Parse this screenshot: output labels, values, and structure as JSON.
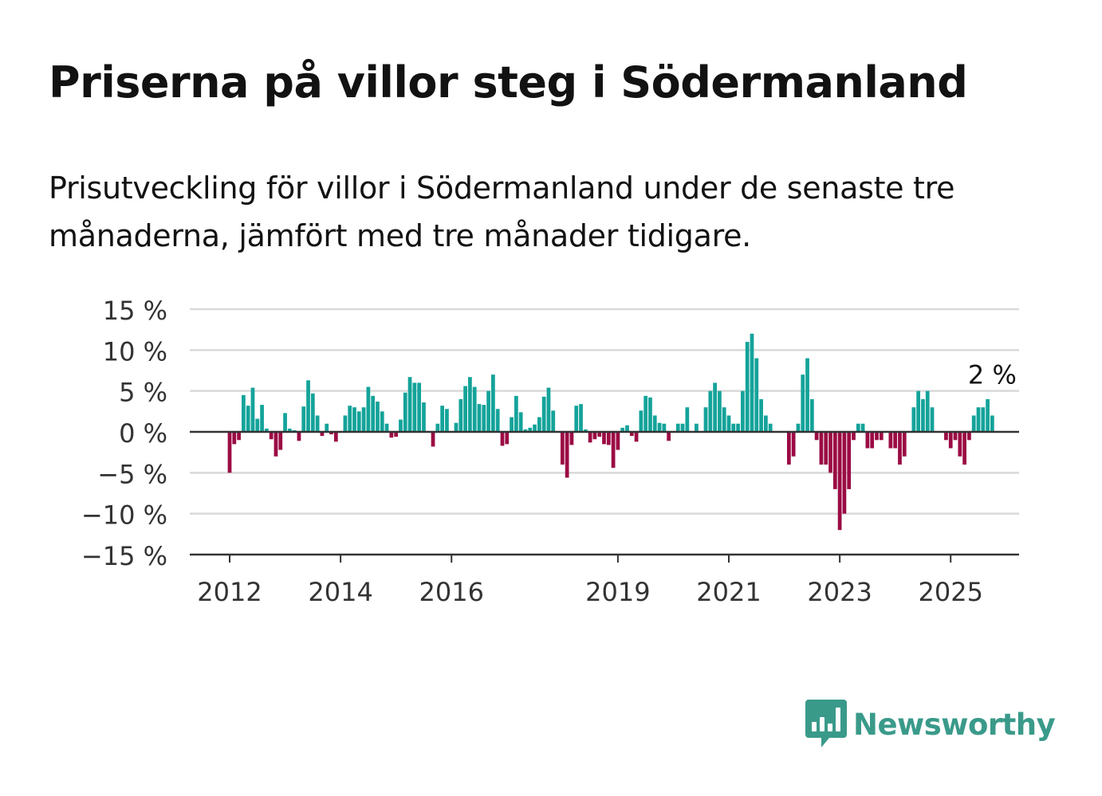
{
  "title": "Priserna på villor steg i Södermanland",
  "subtitle": "Prisutveckling för villor i Södermanland under de senaste tre månaderna, jämfört med tre månader tidigare.",
  "brand": {
    "name": "Newsworthy",
    "logo_icon": "newsworthy-chart-bubble-icon"
  },
  "colors": {
    "positive": "#14a39a",
    "negative": "#9b0b44",
    "grid": "#d9d9d9",
    "axis": "#333333",
    "brand": "#3a9a8a"
  },
  "chart_data": {
    "type": "bar",
    "x_start": "2012-01",
    "x_end": "2025-07",
    "frequency": "monthly",
    "xticks": [
      "2012",
      "2014",
      "2016",
      "2019",
      "2021",
      "2023",
      "2025"
    ],
    "yticks": [
      "15 %",
      "10 %",
      "5 %",
      "0 %",
      "−5 %",
      "−10 %",
      "−15 %"
    ],
    "ylim": [
      -15,
      15
    ],
    "grid": true,
    "annotation": {
      "label": "2 %",
      "target": "last"
    },
    "values": [
      -5,
      -1.5,
      -1,
      4.5,
      3.2,
      5.4,
      1.6,
      3.3,
      0.4,
      -0.9,
      -3,
      -2.2,
      2.3,
      0.4,
      0.2,
      -1.1,
      3.1,
      6.3,
      4.7,
      2,
      -0.5,
      1,
      -0.3,
      -1.2,
      0,
      2,
      3.2,
      3,
      2.5,
      3,
      5.5,
      4.4,
      3.7,
      2.5,
      1,
      -0.7,
      -0.6,
      1.5,
      4.8,
      6.7,
      6,
      6,
      3.6,
      0,
      -1.8,
      1,
      3.2,
      2.8,
      0,
      1.1,
      4,
      5.6,
      6.7,
      5.5,
      3.4,
      3.3,
      5,
      7,
      2.8,
      -1.7,
      -1.5,
      1.8,
      4.4,
      2.4,
      0.3,
      0.5,
      0.9,
      1.8,
      4.3,
      5.4,
      2.6,
      0,
      -4,
      -5.6,
      -1.6,
      3.2,
      3.4,
      0.3,
      -1.3,
      -0.9,
      -0.6,
      -1.5,
      -1.6,
      -4.4,
      -2.2,
      0.5,
      0.8,
      -0.5,
      -1.2,
      2.6,
      4.4,
      4.2,
      2,
      1.1,
      1,
      -1.1,
      0,
      1,
      1,
      3,
      0,
      1,
      0,
      3,
      5,
      6,
      5,
      3,
      2,
      1,
      1,
      5,
      11,
      12,
      9,
      4,
      2,
      1,
      0,
      0,
      0,
      -4,
      -3,
      1,
      7,
      9,
      4,
      -1,
      -4,
      -4,
      -5,
      -7,
      -12,
      -10,
      -7,
      -1,
      1,
      1,
      -2,
      -2,
      -1,
      -1,
      0,
      -2,
      -2,
      -4,
      -3,
      0,
      3,
      5,
      4,
      5,
      3,
      0,
      0,
      -1,
      -2,
      -1,
      -3,
      -4,
      -1,
      2,
      3,
      3,
      4,
      2
    ]
  }
}
